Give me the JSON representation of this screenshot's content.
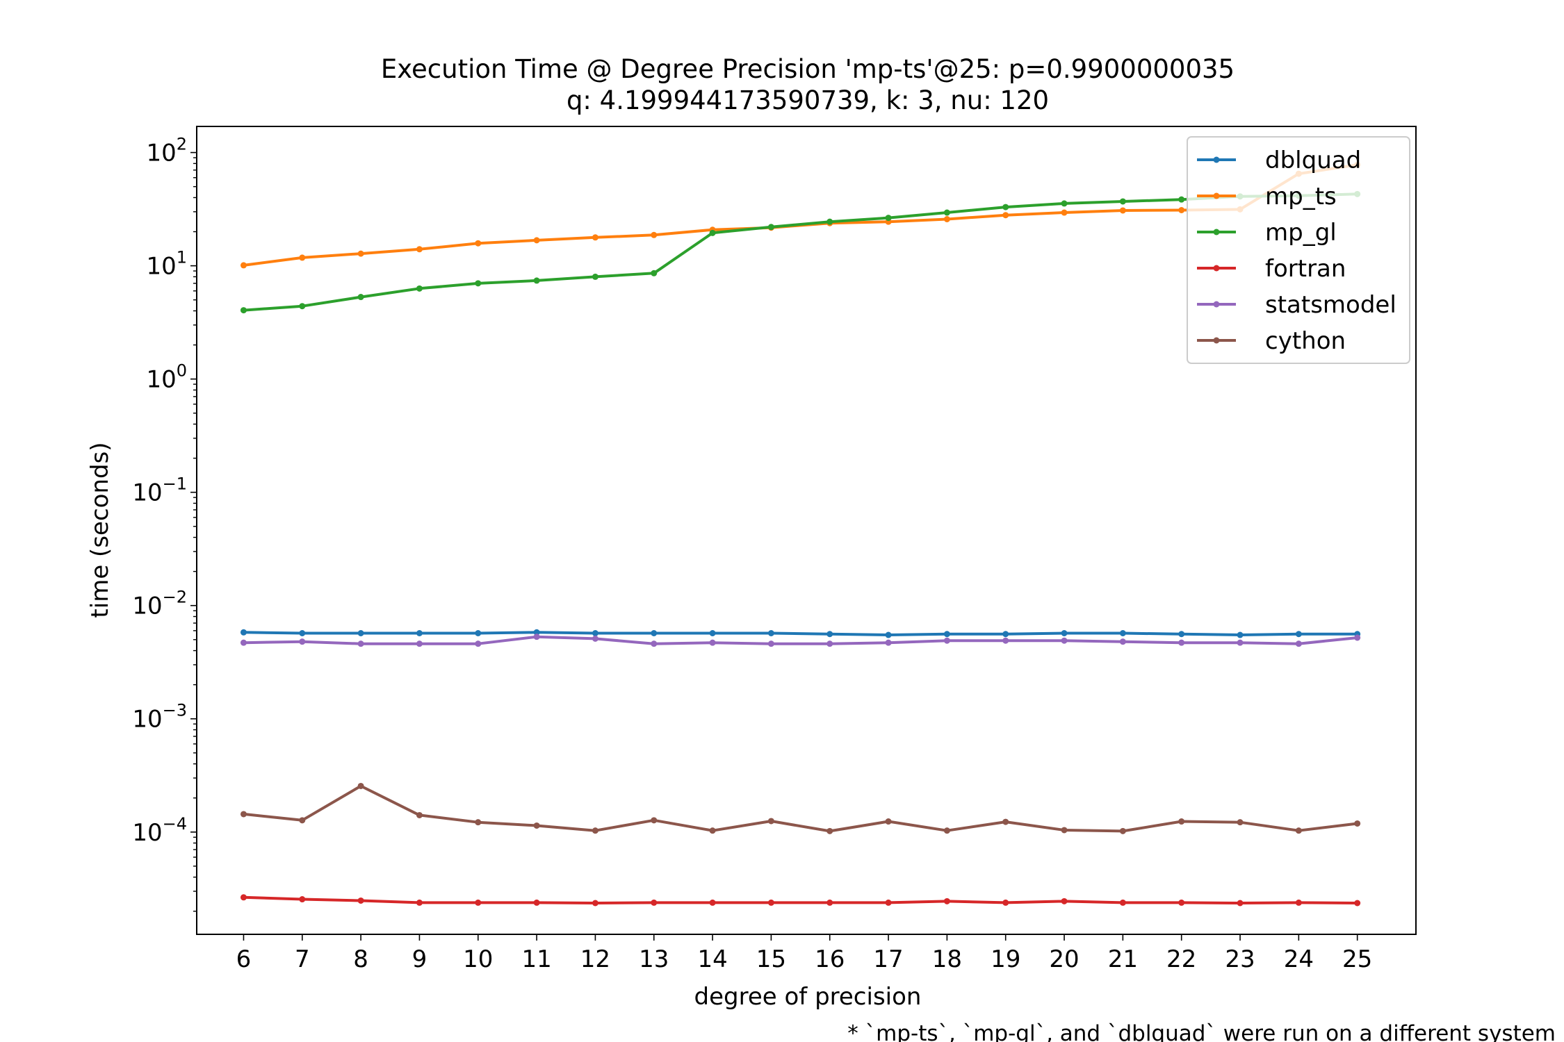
{
  "chart_data": {
    "type": "line",
    "title_line1": "Execution Time @ Degree Precision 'mp-ts'@25: p=0.9900000035",
    "title_line2": "q: 4.199944173590739, k: 3, nu: 120",
    "xlabel": "degree of precision",
    "ylabel": "time (seconds)",
    "footnote": "* `mp-ts`, `mp-gl`, and `dblquad` were run on a different system",
    "yscale": "log",
    "ylim": [
      1.25e-05,
      170
    ],
    "xlim": [
      5.2,
      26.0
    ],
    "x": [
      6,
      7,
      8,
      9,
      10,
      11,
      12,
      13,
      14,
      15,
      16,
      17,
      18,
      19,
      20,
      21,
      22,
      23,
      24,
      25
    ],
    "ytick_base": "10",
    "ytick_exponents": [
      -4,
      -3,
      -2,
      -1,
      0,
      1,
      2
    ],
    "legend_position": "upper right",
    "grid": false,
    "series": [
      {
        "name": "dblquad",
        "color": "#1f77b4",
        "values": [
          0.0058,
          0.0057,
          0.0057,
          0.0057,
          0.0057,
          0.0058,
          0.0057,
          0.0057,
          0.0057,
          0.0057,
          0.0056,
          0.0055,
          0.0056,
          0.0056,
          0.0057,
          0.0057,
          0.0056,
          0.0055,
          0.0056,
          0.0056
        ]
      },
      {
        "name": "mp_ts",
        "color": "#ff7f0e",
        "values": [
          10.1,
          11.8,
          12.8,
          14.0,
          15.8,
          16.8,
          17.8,
          18.7,
          20.8,
          21.7,
          23.8,
          24.5,
          25.8,
          28.0,
          29.5,
          30.8,
          31.0,
          31.5,
          65.0,
          78.0
        ]
      },
      {
        "name": "mp_gl",
        "color": "#2ca02c",
        "values": [
          4.05,
          4.4,
          5.3,
          6.3,
          7.0,
          7.4,
          8.0,
          8.6,
          19.5,
          22.0,
          24.5,
          26.5,
          29.5,
          33.0,
          35.5,
          37.0,
          38.5,
          41.0,
          41.5,
          43.0
        ]
      },
      {
        "name": "fortran",
        "color": "#d62728",
        "values": [
          2.65e-05,
          2.55e-05,
          2.48e-05,
          2.38e-05,
          2.38e-05,
          2.38e-05,
          2.36e-05,
          2.38e-05,
          2.38e-05,
          2.38e-05,
          2.38e-05,
          2.38e-05,
          2.45e-05,
          2.38e-05,
          2.45e-05,
          2.38e-05,
          2.38e-05,
          2.36e-05,
          2.38e-05,
          2.36e-05
        ]
      },
      {
        "name": "statsmodel",
        "color": "#9467bd",
        "values": [
          0.0047,
          0.0048,
          0.0046,
          0.0046,
          0.0046,
          0.0053,
          0.0051,
          0.0046,
          0.0047,
          0.0046,
          0.0046,
          0.0047,
          0.0049,
          0.0049,
          0.0049,
          0.0048,
          0.0047,
          0.0047,
          0.0046,
          0.0052
        ]
      },
      {
        "name": "cython",
        "color": "#8c564b",
        "values": [
          0.000144,
          0.000127,
          0.000255,
          0.000141,
          0.000122,
          0.000114,
          0.000103,
          0.000127,
          0.000103,
          0.000125,
          0.000102,
          0.000124,
          0.000103,
          0.000123,
          0.000104,
          0.000102,
          0.000124,
          0.000122,
          0.000103,
          0.000119
        ]
      }
    ]
  }
}
